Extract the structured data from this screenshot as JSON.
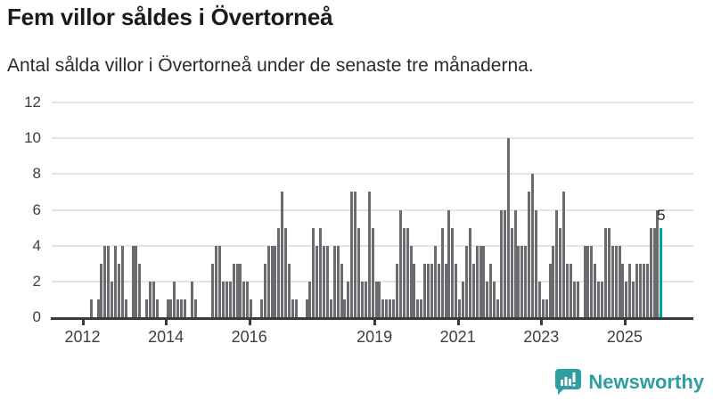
{
  "header": {
    "title": "Fem villor såldes i Övertorneå",
    "subtitle": "Antal sålda villor i Övertorneå under de senaste tre månaderna."
  },
  "chart_data": {
    "type": "bar",
    "title": "Fem villor såldes i Övertorneå",
    "subtitle": "Antal sålda villor i Övertorneå under de senaste tre månaderna.",
    "x_start_month": "2012-03",
    "x_end_month": "2025-11",
    "values": [
      1,
      0,
      1,
      3,
      4,
      4,
      2,
      4,
      3,
      4,
      1,
      0,
      4,
      4,
      3,
      0,
      1,
      2,
      2,
      1,
      0,
      0,
      1,
      1,
      2,
      1,
      1,
      1,
      0,
      2,
      1,
      0,
      0,
      0,
      0,
      3,
      4,
      4,
      2,
      2,
      2,
      3,
      3,
      3,
      2,
      2,
      1,
      0,
      0,
      1,
      3,
      4,
      4,
      4,
      5,
      7,
      5,
      3,
      1,
      1,
      0,
      0,
      1,
      2,
      5,
      4,
      5,
      4,
      4,
      1,
      4,
      4,
      3,
      1,
      2,
      7,
      7,
      5,
      2,
      2,
      7,
      5,
      2,
      2,
      1,
      1,
      1,
      1,
      3,
      6,
      5,
      5,
      4,
      3,
      1,
      1,
      3,
      3,
      3,
      4,
      3,
      5,
      3,
      6,
      5,
      3,
      1,
      2,
      4,
      5,
      3,
      4,
      4,
      4,
      2,
      3,
      2,
      1,
      6,
      6,
      10,
      5,
      6,
      4,
      4,
      4,
      7,
      8,
      6,
      2,
      1,
      1,
      3,
      4,
      6,
      5,
      7,
      3,
      3,
      2,
      2,
      0,
      4,
      4,
      4,
      3,
      2,
      2,
      5,
      5,
      4,
      4,
      4,
      3,
      2,
      3,
      2,
      3,
      3,
      3,
      3,
      5,
      5,
      6,
      5
    ],
    "highlight_last_bar": true,
    "last_value_label": "5",
    "ylim": [
      0,
      12
    ],
    "yticks": [
      "0",
      "2",
      "4",
      "6",
      "8",
      "10",
      "12"
    ],
    "xticks": [
      "2012",
      "2014",
      "2016",
      "2019",
      "2021",
      "2023",
      "2025"
    ],
    "grid": "horizontal",
    "legend": "none",
    "colors": {
      "bar": "#6b6b6f",
      "bar_highlight": "#00a0a2",
      "gridline": "#e4e4e4",
      "axis": "#3a3a3a",
      "tick_label": "#3f3f3f"
    }
  },
  "footer": {
    "brand": "Newsworthy"
  }
}
